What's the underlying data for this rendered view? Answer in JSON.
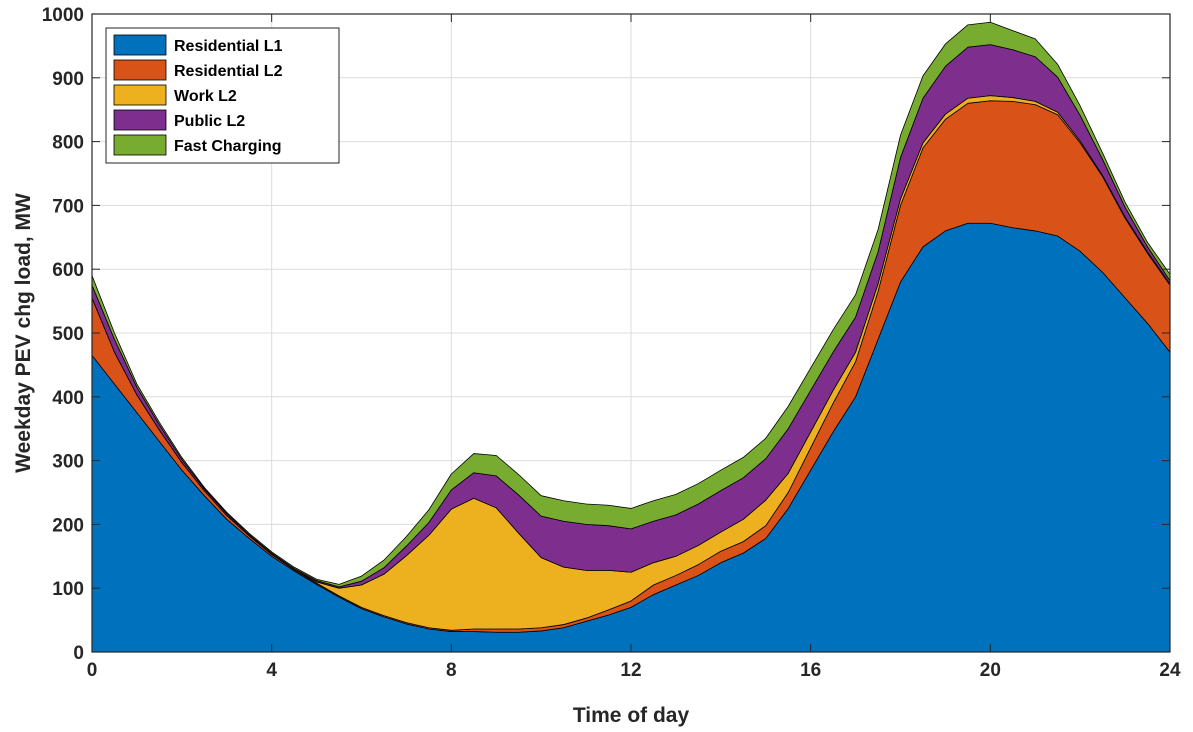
{
  "chart_data": {
    "type": "area",
    "stacked": true,
    "title": "",
    "xlabel": "Time of day",
    "ylabel": "Weekday PEV chg load, MW",
    "xlim": [
      0,
      24
    ],
    "ylim": [
      0,
      1000
    ],
    "xticks": [
      0,
      4,
      8,
      12,
      16,
      20,
      24
    ],
    "yticks": [
      0,
      100,
      200,
      300,
      400,
      500,
      600,
      700,
      800,
      900,
      1000
    ],
    "grid": true,
    "legend_position": "top-left",
    "x": [
      0,
      0.5,
      1,
      1.5,
      2,
      2.5,
      3,
      3.5,
      4,
      4.5,
      5,
      5.5,
      6,
      6.5,
      7,
      7.5,
      8,
      8.5,
      9,
      9.5,
      10,
      10.5,
      11,
      11.5,
      12,
      12.5,
      13,
      13.5,
      14,
      14.5,
      15,
      15.5,
      16,
      16.5,
      17,
      17.5,
      18,
      18.5,
      19,
      19.5,
      20,
      20.5,
      21,
      21.5,
      22,
      22.5,
      23,
      23.5,
      24
    ],
    "series": [
      {
        "name": "Residential L1",
        "color": "#0072BD",
        "values": [
          465,
          420,
          375,
          330,
          285,
          245,
          208,
          178,
          150,
          127,
          106,
          86,
          68,
          55,
          44,
          36,
          32,
          32,
          31,
          31,
          33,
          38,
          48,
          58,
          70,
          90,
          105,
          120,
          140,
          155,
          178,
          225,
          285,
          345,
          400,
          490,
          580,
          635,
          660,
          672,
          672,
          665,
          660,
          652,
          628,
          595,
          555,
          515,
          470
        ]
      },
      {
        "name": "Residential L2",
        "color": "#D95319",
        "values": [
          90,
          50,
          28,
          18,
          12,
          8,
          6,
          4,
          3,
          2,
          2,
          2,
          2,
          2,
          2,
          2,
          2,
          4,
          5,
          5,
          5,
          5,
          5,
          8,
          10,
          15,
          15,
          17,
          18,
          18,
          20,
          25,
          35,
          45,
          55,
          75,
          120,
          155,
          175,
          188,
          192,
          198,
          198,
          190,
          170,
          150,
          125,
          110,
          105
        ]
      },
      {
        "name": "Work L2",
        "color": "#EDB120",
        "values": [
          0,
          0,
          0,
          0,
          0,
          0,
          0,
          0,
          0,
          0,
          2,
          12,
          35,
          65,
          105,
          145,
          190,
          205,
          190,
          150,
          110,
          90,
          75,
          62,
          45,
          35,
          30,
          30,
          30,
          35,
          40,
          30,
          25,
          20,
          15,
          12,
          10,
          8,
          8,
          8,
          8,
          6,
          5,
          4,
          3,
          2,
          2,
          2,
          2
        ]
      },
      {
        "name": "Public L2",
        "color": "#7E2F8E",
        "values": [
          20,
          20,
          12,
          8,
          5,
          3,
          3,
          2,
          2,
          2,
          2,
          2,
          6,
          10,
          15,
          20,
          30,
          40,
          50,
          60,
          65,
          72,
          72,
          70,
          68,
          65,
          65,
          65,
          65,
          65,
          65,
          70,
          65,
          60,
          55,
          50,
          65,
          70,
          75,
          80,
          80,
          75,
          70,
          55,
          40,
          25,
          15,
          8,
          5
        ]
      },
      {
        "name": "Fast Charging",
        "color": "#77AC30",
        "values": [
          15,
          10,
          5,
          4,
          3,
          2,
          2,
          2,
          2,
          2,
          2,
          4,
          8,
          12,
          15,
          20,
          25,
          30,
          32,
          32,
          32,
          32,
          32,
          32,
          32,
          32,
          32,
          32,
          32,
          32,
          32,
          35,
          35,
          35,
          35,
          35,
          35,
          35,
          35,
          35,
          35,
          30,
          28,
          20,
          15,
          10,
          8,
          7,
          10
        ]
      }
    ]
  }
}
